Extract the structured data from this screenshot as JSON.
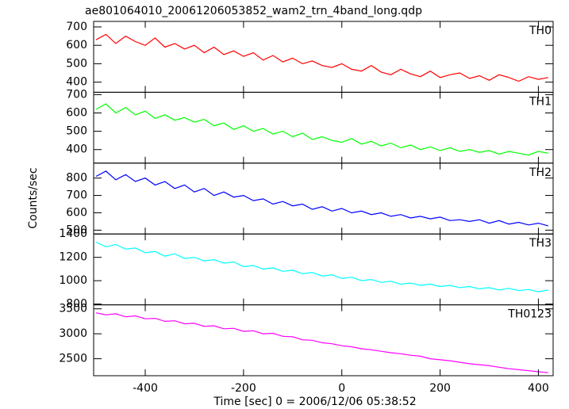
{
  "chart_data": {
    "type": "line",
    "title": "ae801064010_20061206053852_wam2_trn_4band_long.qdp",
    "xlabel": "Time [sec] 0 = 2006/12/06 05:38:52",
    "ylabel": "Counts/sec",
    "xlim": [
      -505,
      430
    ],
    "xticks": [
      -400,
      -200,
      0,
      200,
      400
    ],
    "x": [
      -500,
      -480,
      -460,
      -440,
      -420,
      -400,
      -380,
      -360,
      -340,
      -320,
      -300,
      -280,
      -260,
      -240,
      -220,
      -200,
      -180,
      -160,
      -140,
      -120,
      -100,
      -80,
      -60,
      -40,
      -20,
      0,
      20,
      40,
      60,
      80,
      100,
      120,
      140,
      160,
      180,
      200,
      220,
      240,
      260,
      280,
      300,
      320,
      340,
      360,
      380,
      400,
      420
    ],
    "panels": [
      {
        "name": "TH0",
        "color": "#ff0000",
        "ylim": [
          345,
          730
        ],
        "yticks": [
          400,
          500,
          600,
          700
        ],
        "values": [
          630,
          660,
          610,
          650,
          620,
          600,
          640,
          590,
          610,
          580,
          600,
          560,
          590,
          550,
          570,
          540,
          560,
          520,
          545,
          510,
          530,
          500,
          515,
          490,
          480,
          500,
          470,
          460,
          490,
          455,
          440,
          470,
          445,
          430,
          460,
          425,
          440,
          450,
          420,
          435,
          410,
          440,
          425,
          405,
          430,
          415,
          425
        ]
      },
      {
        "name": "TH1",
        "color": "#00ff00",
        "ylim": [
          326,
          713
        ],
        "yticks": [
          400,
          500,
          600,
          700
        ],
        "values": [
          620,
          650,
          600,
          630,
          590,
          610,
          570,
          590,
          560,
          575,
          550,
          565,
          530,
          545,
          510,
          530,
          500,
          515,
          485,
          500,
          470,
          490,
          455,
          470,
          450,
          440,
          460,
          430,
          445,
          420,
          435,
          410,
          425,
          400,
          415,
          395,
          410,
          390,
          400,
          385,
          395,
          375,
          390,
          380,
          370,
          390,
          380
        ]
      },
      {
        "name": "TH2",
        "color": "#0000ff",
        "ylim": [
          478,
          886
        ],
        "yticks": [
          500,
          600,
          700,
          800
        ],
        "values": [
          810,
          840,
          790,
          820,
          780,
          800,
          760,
          780,
          740,
          760,
          720,
          740,
          700,
          720,
          690,
          700,
          670,
          680,
          650,
          665,
          640,
          650,
          620,
          635,
          610,
          625,
          600,
          610,
          590,
          600,
          580,
          590,
          570,
          580,
          565,
          575,
          555,
          560,
          550,
          560,
          540,
          555,
          535,
          545,
          530,
          540,
          525
        ]
      },
      {
        "name": "TH3",
        "color": "#00ffff",
        "ylim": [
          793,
          1400
        ],
        "yticks": [
          800,
          1000,
          1200,
          1400
        ],
        "values": [
          1330,
          1290,
          1310,
          1270,
          1280,
          1240,
          1250,
          1210,
          1230,
          1190,
          1200,
          1170,
          1180,
          1150,
          1160,
          1120,
          1130,
          1100,
          1110,
          1080,
          1090,
          1060,
          1070,
          1040,
          1050,
          1020,
          1030,
          1000,
          1010,
          985,
          995,
          970,
          980,
          960,
          970,
          950,
          960,
          940,
          950,
          930,
          940,
          920,
          935,
          915,
          925,
          905,
          920
        ]
      },
      {
        "name": "TH0123",
        "color": "#ff00ff",
        "ylim": [
          2160,
          3580
        ],
        "yticks": [
          2500,
          3000,
          3500
        ],
        "values": [
          3420,
          3380,
          3400,
          3340,
          3360,
          3300,
          3310,
          3250,
          3260,
          3200,
          3210,
          3150,
          3160,
          3100,
          3110,
          3050,
          3060,
          3000,
          3010,
          2950,
          2940,
          2880,
          2870,
          2820,
          2800,
          2760,
          2740,
          2700,
          2680,
          2650,
          2620,
          2600,
          2570,
          2550,
          2500,
          2480,
          2460,
          2430,
          2400,
          2380,
          2360,
          2330,
          2300,
          2280,
          2260,
          2240,
          2220
        ]
      }
    ]
  }
}
